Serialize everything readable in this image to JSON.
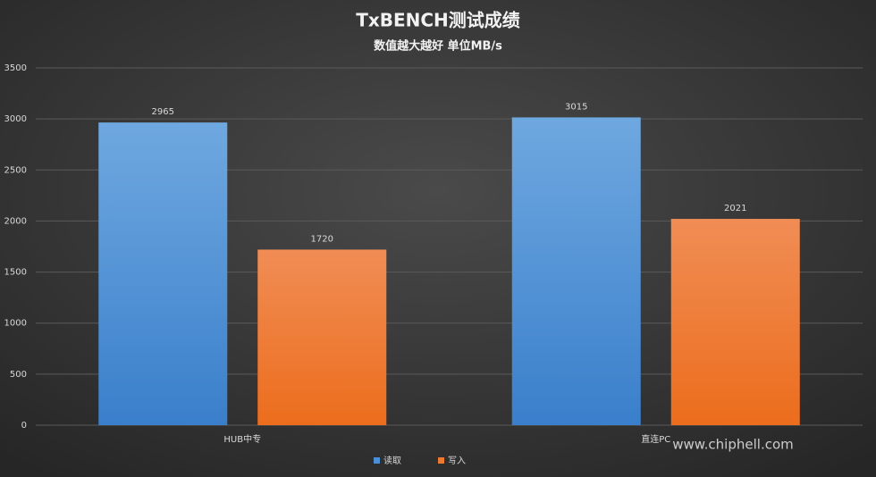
{
  "chart_data": {
    "type": "bar",
    "title": "TxBENCH测试成绩",
    "subtitle": "数值越大越好 单位MB/s",
    "categories": [
      "HUB中专",
      "直连PC"
    ],
    "series": [
      {
        "name": "读取",
        "color": "#4a90d9",
        "values": [
          2965,
          3015
        ]
      },
      {
        "name": "写入",
        "color": "#ee7a30",
        "values": [
          1720,
          2021
        ]
      }
    ],
    "ylim": [
      0,
      3500
    ],
    "yticks": [
      0,
      500,
      1000,
      1500,
      2000,
      2500,
      3000,
      3500
    ],
    "grid": true,
    "legend": "bottom",
    "watermark": "www.chiphell.com"
  }
}
